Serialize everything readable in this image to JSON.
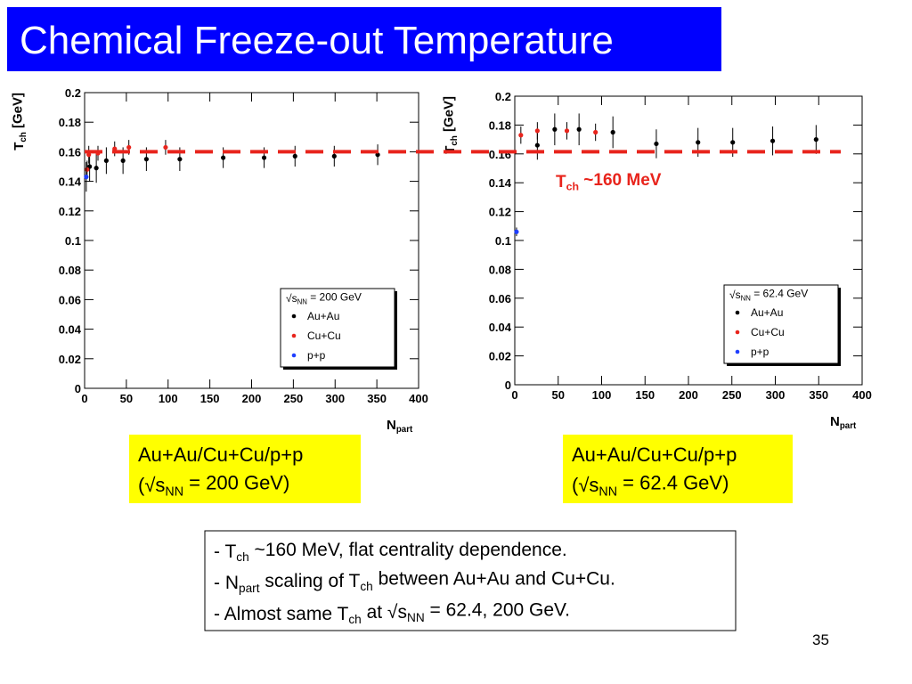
{
  "slide": {
    "title": "Chemical Freeze-out Temperature",
    "captions": [
      [
        [
          "Au+Au/Cu+Cu/p+p"
        ],
        [
          "(√s",
          "NN",
          " = 200 GeV)"
        ]
      ],
      [
        [
          "Au+Au/Cu+Cu/p+p"
        ],
        [
          "(√s",
          "NN",
          " = 62.4 GeV)"
        ]
      ]
    ],
    "bullets": [
      [
        "- T",
        "ch",
        " ~160 MeV, flat centrality dependence."
      ],
      [
        "- N",
        "part",
        " scaling of T",
        "ch",
        " between Au+Au and Cu+Cu."
      ],
      [
        "- Almost same T",
        "ch",
        " at √s",
        "NN",
        " = 62.4, 200 GeV."
      ]
    ],
    "page_number": "35",
    "reference_line": {
      "value": 0.16,
      "color": "#e8241c"
    }
  },
  "chart_data": [
    {
      "type": "scatter",
      "x_label": [
        "N",
        "part"
      ],
      "y_label": [
        "T",
        "ch",
        " [GeV]"
      ],
      "xlim": [
        0,
        400
      ],
      "ylim": [
        0,
        0.2
      ],
      "xticks": [
        0,
        50,
        100,
        150,
        200,
        250,
        300,
        350,
        400
      ],
      "yticks": [
        0,
        0.02,
        0.04,
        0.06,
        0.08,
        0.1,
        0.12,
        0.14,
        0.16,
        0.18,
        0.2
      ],
      "legend": "lower right",
      "legend_title": [
        "√s",
        "NN",
        " = 200 GeV"
      ],
      "series": [
        {
          "name": "Au+Au",
          "color": "#000000",
          "x": [
            6,
            14,
            26,
            46,
            74,
            114,
            166,
            215,
            252,
            299,
            351
          ],
          "values": [
            0.15,
            0.149,
            0.154,
            0.154,
            0.155,
            0.155,
            0.156,
            0.156,
            0.157,
            0.157,
            0.158
          ],
          "errors": [
            0.01,
            0.01,
            0.009,
            0.009,
            0.008,
            0.008,
            0.007,
            0.007,
            0.007,
            0.007,
            0.007
          ]
        },
        {
          "name": "Cu+Cu",
          "color": "#e8241c",
          "x": [
            3,
            5,
            16,
            36,
            53,
            97
          ],
          "values": [
            0.148,
            0.158,
            0.159,
            0.162,
            0.163,
            0.163
          ],
          "errors": [
            0.006,
            0.006,
            0.005,
            0.005,
            0.005,
            0.005
          ]
        },
        {
          "name": "p+p",
          "color": "#1f3fff",
          "x": [
            2
          ],
          "values": [
            0.143
          ],
          "errors": [
            0.01
          ]
        }
      ]
    },
    {
      "type": "scatter",
      "x_label": [
        "N",
        "part"
      ],
      "y_label": [
        "T",
        "ch",
        " [GeV]"
      ],
      "xlim": [
        0,
        400
      ],
      "ylim": [
        0,
        0.2
      ],
      "xticks": [
        0,
        50,
        100,
        150,
        200,
        250,
        300,
        350,
        400
      ],
      "yticks": [
        0,
        0.02,
        0.04,
        0.06,
        0.08,
        0.1,
        0.12,
        0.14,
        0.16,
        0.18,
        0.2
      ],
      "legend": "lower right",
      "legend_title": [
        "√s",
        "NN",
        " = 62.4 GeV"
      ],
      "annotation": [
        "T",
        "ch",
        " ~160 MeV"
      ],
      "series": [
        {
          "name": "Au+Au",
          "color": "#000000",
          "x": [
            26,
            46,
            74,
            113,
            163,
            211,
            251,
            297,
            347
          ],
          "values": [
            0.166,
            0.177,
            0.177,
            0.175,
            0.167,
            0.168,
            0.168,
            0.169,
            0.17
          ],
          "errors": [
            0.01,
            0.011,
            0.011,
            0.011,
            0.01,
            0.01,
            0.01,
            0.01,
            0.01
          ]
        },
        {
          "name": "Cu+Cu",
          "color": "#e8241c",
          "x": [
            7,
            26,
            60,
            93
          ],
          "values": [
            0.173,
            0.176,
            0.176,
            0.175
          ],
          "errors": [
            0.006,
            0.006,
            0.006,
            0.006
          ]
        },
        {
          "name": "p+p",
          "color": "#1f3fff",
          "x": [
            2
          ],
          "values": [
            0.106
          ],
          "errors": [
            0.003
          ]
        }
      ]
    }
  ]
}
